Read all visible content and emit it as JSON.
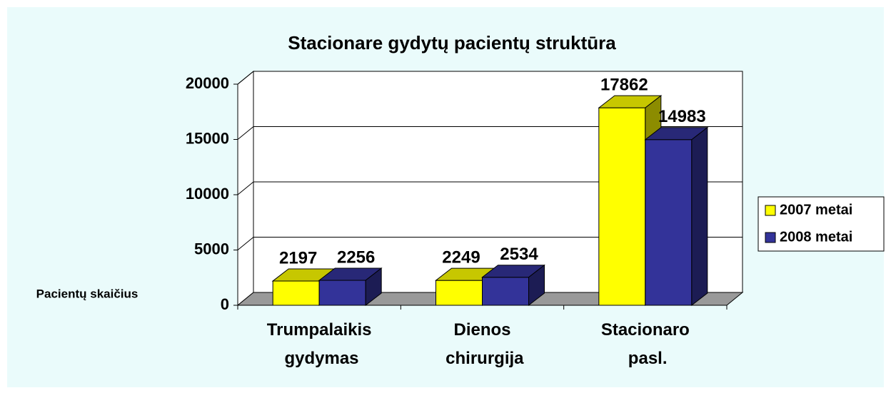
{
  "chart_data": {
    "type": "bar3d",
    "title": "Stacionare gydytų pacientų struktūra",
    "y_label": "Pacientų skaičius",
    "categories": [
      "Trumpalaikis gydymas",
      "Dienos chirurgija",
      "Stacionaro pasl."
    ],
    "series": [
      {
        "name": "2007 metai",
        "color": "#ffff00",
        "values": [
          2197,
          2249,
          17862
        ]
      },
      {
        "name": "2008 metai",
        "color": "#333399",
        "values": [
          2256,
          2534,
          14983
        ]
      }
    ],
    "ylim": [
      0,
      20000
    ],
    "yticks": [
      0,
      5000,
      10000,
      15000,
      20000
    ],
    "grid": true,
    "legend": "right"
  }
}
